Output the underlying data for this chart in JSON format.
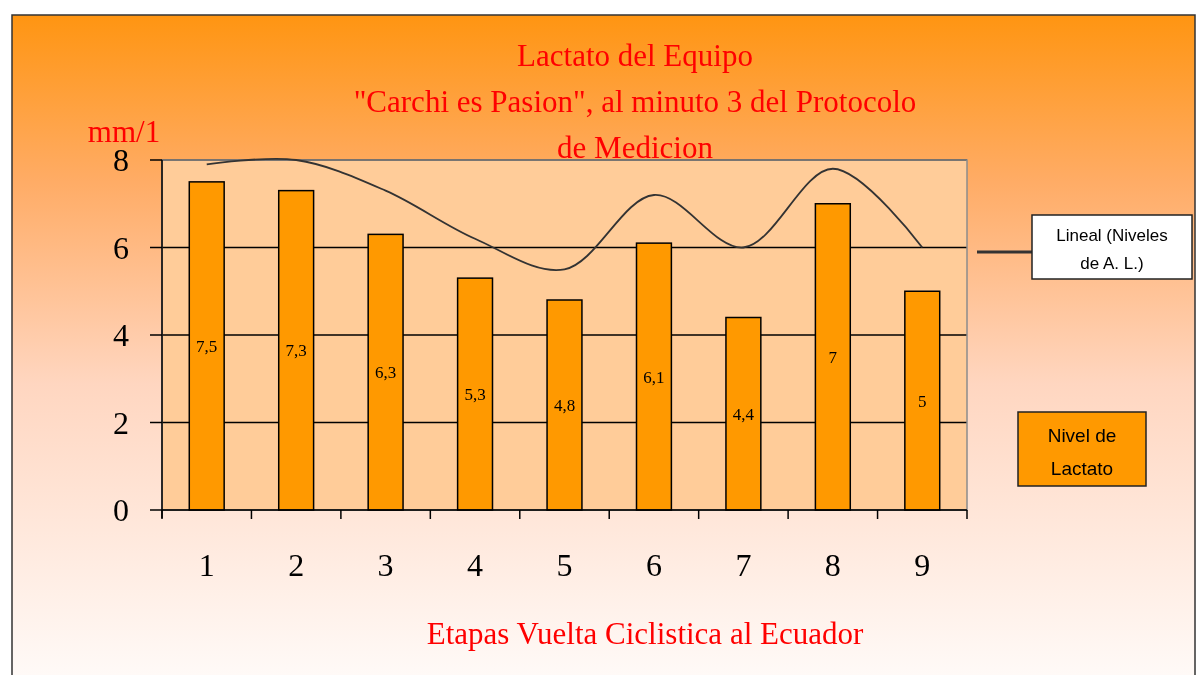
{
  "chart_data": {
    "type": "bar",
    "title": "Lactato del Equipo\n\"Carchi es Pasion\", al minuto 3 del Protocolo\nde Medicion",
    "xlabel": "Etapas Vuelta Ciclistica al Ecuador",
    "ylabel": "mm/1",
    "categories": [
      "1",
      "2",
      "3",
      "4",
      "5",
      "6",
      "7",
      "8",
      "9"
    ],
    "series": [
      {
        "name": "Lineal (Niveles de A. L.)",
        "type": "line",
        "color": "#333333",
        "values": [
          7.9,
          8.0,
          7.3,
          6.2,
          5.5,
          7.2,
          6.0,
          7.8,
          6.0
        ]
      },
      {
        "name": "Nivel de Lactato",
        "color": "#ff9900",
        "values": [
          7.5,
          7.3,
          6.3,
          5.3,
          4.8,
          6.1,
          4.4,
          7,
          5
        ],
        "value_labels": [
          "7,5",
          "7,3",
          "6,3",
          "5,3",
          "4,8",
          "6,1",
          "4,4",
          "7",
          "5"
        ]
      }
    ],
    "ylim": [
      0,
      8
    ],
    "yticks": [
      0,
      2,
      4,
      6,
      8
    ],
    "grid": "y",
    "legend": "right"
  }
}
